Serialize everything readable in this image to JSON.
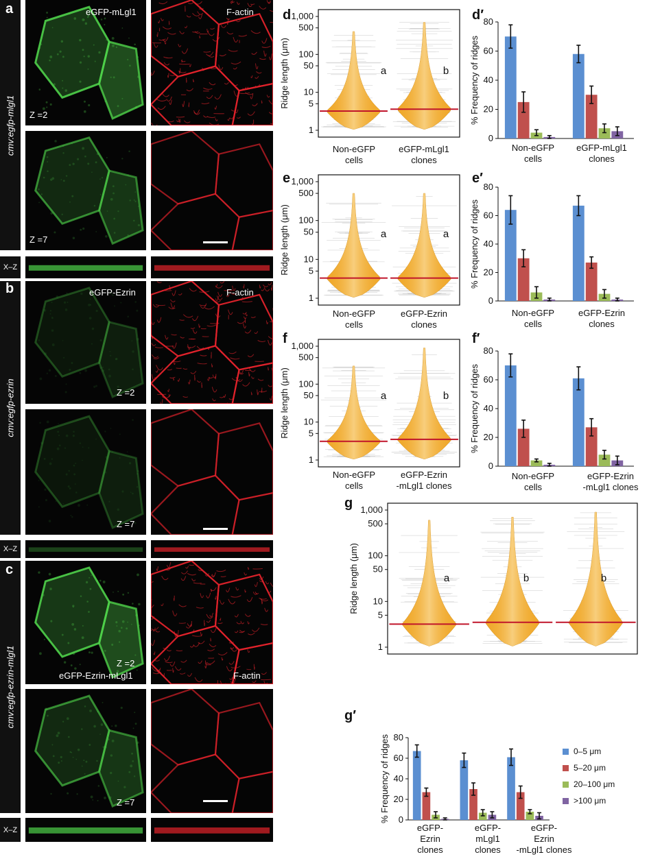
{
  "left_figure": {
    "panels": [
      {
        "letter": "a",
        "construct": "cmv:egfp-mlgl1",
        "green_label": "eGFP-mLgl1",
        "red_label": "F-actin",
        "z_top": "Z =2",
        "z_bottom": "Z =7",
        "xz_label": "X–Z"
      },
      {
        "letter": "b",
        "construct": "cmv:egfp-ezrin",
        "green_label": "eGFP-Ezrin",
        "red_label": "F-actin",
        "z_top": "Z =2",
        "z_bottom": "Z =7",
        "xz_label": "X–Z"
      },
      {
        "letter": "c",
        "construct": "cmv:egfp-ezrin-mlgl1",
        "green_label": "eGFP-Ezrin-mLgl1",
        "red_label": "F-actin",
        "z_top": "Z =2",
        "z_bottom": "Z =7",
        "xz_label": "X–Z"
      }
    ]
  },
  "violin_ylabel": "Ridge length (μm)",
  "violin_ticks": [
    "1,000",
    "500",
    "100",
    "50",
    "10",
    "5",
    "1"
  ],
  "bar_ylabel": "% Frequency of ridges",
  "chart_data": [
    {
      "id": "d",
      "type": "violin",
      "ylabel": "Ridge length (μm)",
      "log_scale": true,
      "ylim": [
        1,
        1000
      ],
      "categories": [
        "Non-eGFP cells",
        "eGFP-mLgl1 clones"
      ],
      "cat_lines": [
        [
          "Non-eGFP",
          "cells"
        ],
        [
          "eGFP-mLgl1",
          "clones"
        ]
      ],
      "letters": [
        "a",
        "b"
      ],
      "medians": [
        3.2,
        3.6
      ],
      "max": [
        400,
        700
      ]
    },
    {
      "id": "d′",
      "type": "bar",
      "ylabel": "% Frequency of ridges",
      "ylim": [
        0,
        80
      ],
      "yticks": [
        0,
        20,
        40,
        60,
        80
      ],
      "categories": [
        "Non-eGFP cells",
        "eGFP-mLgl1 clones"
      ],
      "cat_lines": [
        [
          "Non-eGFP",
          "cells"
        ],
        [
          "eGFP-mLgl1",
          "clones"
        ]
      ],
      "series": [
        {
          "values": [
            70,
            58
          ],
          "err": [
            8,
            6
          ]
        },
        {
          "values": [
            25,
            30
          ],
          "err": [
            7,
            6
          ]
        },
        {
          "values": [
            4,
            7
          ],
          "err": [
            2,
            3
          ]
        },
        {
          "values": [
            1,
            5
          ],
          "err": [
            1,
            3
          ]
        }
      ]
    },
    {
      "id": "e",
      "type": "violin",
      "ylabel": "Ridge length (μm)",
      "log_scale": true,
      "ylim": [
        1,
        1000
      ],
      "categories": [
        "Non-eGFP cells",
        "eGFP-Ezrin clones"
      ],
      "cat_lines": [
        [
          "Non-eGFP",
          "cells"
        ],
        [
          "eGFP-Ezrin",
          "clones"
        ]
      ],
      "letters": [
        "a",
        "a"
      ],
      "medians": [
        3.3,
        3.3
      ],
      "max": [
        500,
        500
      ]
    },
    {
      "id": "e′",
      "type": "bar",
      "ylabel": "% Frequency of ridges",
      "ylim": [
        0,
        80
      ],
      "yticks": [
        0,
        20,
        40,
        60,
        80
      ],
      "categories": [
        "Non-eGFP cells",
        "eGFP-Ezrin clones"
      ],
      "cat_lines": [
        [
          "Non-eGFP",
          "cells"
        ],
        [
          "eGFP-Ezrin",
          "clones"
        ]
      ],
      "series": [
        {
          "values": [
            64,
            67
          ],
          "err": [
            10,
            7
          ]
        },
        {
          "values": [
            30,
            27
          ],
          "err": [
            6,
            4
          ]
        },
        {
          "values": [
            6,
            5
          ],
          "err": [
            4,
            3
          ]
        },
        {
          "values": [
            1,
            1
          ],
          "err": [
            1,
            1
          ]
        }
      ]
    },
    {
      "id": "f",
      "type": "violin",
      "ylabel": "Ridge length (μm)",
      "log_scale": true,
      "ylim": [
        1,
        1000
      ],
      "categories": [
        "Non-eGFP cells",
        "eGFP-Ezrin-mLgl1 clones"
      ],
      "cat_lines": [
        [
          "Non-eGFP",
          "cells"
        ],
        [
          "eGFP-Ezrin",
          "-mLgl1 clones"
        ]
      ],
      "letters": [
        "a",
        "b"
      ],
      "medians": [
        3.1,
        3.5
      ],
      "max": [
        300,
        900
      ]
    },
    {
      "id": "f′",
      "type": "bar",
      "ylabel": "% Frequency of ridges",
      "ylim": [
        0,
        80
      ],
      "yticks": [
        0,
        20,
        40,
        60,
        80
      ],
      "categories": [
        "Non-eGFP cells",
        "eGFP-Ezrin-mLgl1 clones"
      ],
      "cat_lines": [
        [
          "Non-eGFP",
          "cells"
        ],
        [
          "eGFP-Ezrin",
          "-mLgl1 clones"
        ]
      ],
      "series": [
        {
          "values": [
            70,
            61
          ],
          "err": [
            8,
            8
          ]
        },
        {
          "values": [
            26,
            27
          ],
          "err": [
            6,
            6
          ]
        },
        {
          "values": [
            4,
            8
          ],
          "err": [
            1,
            3
          ]
        },
        {
          "values": [
            1,
            4
          ],
          "err": [
            1,
            3
          ]
        }
      ]
    },
    {
      "id": "g",
      "type": "violin",
      "ylabel": "Ridge length (μm)",
      "log_scale": true,
      "ylim": [
        1,
        1000
      ],
      "categories": [
        "eGFP-Ezrin clones",
        "eGFP-mLgl1 clones",
        "eGFP-Ezrin-mLgl1 clones"
      ],
      "letters": [
        "a",
        "b",
        "b"
      ],
      "medians": [
        3.2,
        3.5,
        3.5
      ],
      "max": [
        600,
        700,
        900
      ]
    },
    {
      "id": "g′",
      "type": "bar",
      "ylabel": "% Frequency of ridges",
      "ylim": [
        0,
        80
      ],
      "yticks": [
        0,
        20,
        40,
        60,
        80
      ],
      "categories": [
        "eGFP-Ezrin clones",
        "eGFP-mLgl1 clones",
        "eGFP-Ezrin-mLgl1 clones"
      ],
      "cat_lines": [
        [
          "eGFP-",
          "Ezrin",
          "clones"
        ],
        [
          "eGFP-",
          "mLgl1",
          "clones"
        ],
        [
          "eGFP-",
          "Ezrin",
          "-mLgl1 clones"
        ]
      ],
      "series": [
        {
          "name": "0–5 μm",
          "values": [
            67,
            58,
            61
          ],
          "err": [
            6,
            7,
            8
          ]
        },
        {
          "name": "5–20 μm",
          "values": [
            27,
            30,
            27
          ],
          "err": [
            4,
            6,
            6
          ]
        },
        {
          "name": "20–100 μm",
          "values": [
            5,
            7,
            8
          ],
          "err": [
            3,
            3,
            2
          ]
        },
        {
          "name": ">100 μm",
          "values": [
            1,
            5,
            4
          ],
          "err": [
            1,
            3,
            3
          ]
        }
      ],
      "legend_position": "right"
    }
  ],
  "colors": {
    "bin0": "#5b8fd1",
    "bin1": "#c0504d",
    "bin2": "#9bbb59",
    "bin3": "#8064a2",
    "violin": "#f0a92c",
    "violin_light": "#fde7b3",
    "median": "#c0142a"
  }
}
